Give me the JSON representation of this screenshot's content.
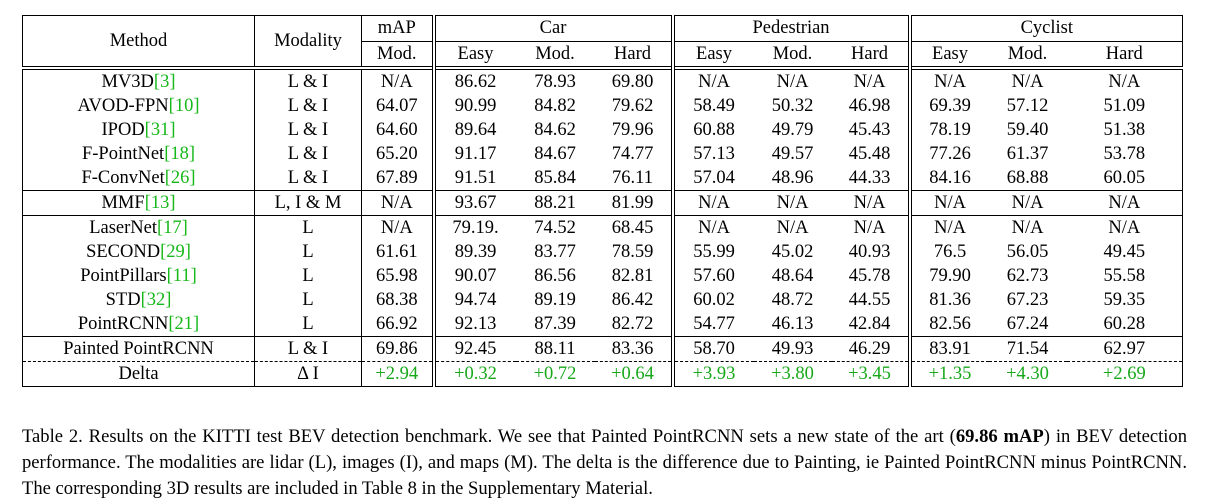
{
  "header": {
    "method": "Method",
    "modality": "Modality",
    "map": "mAP",
    "map_sub": "Mod.",
    "groups": [
      "Car",
      "Pedestrian",
      "Cyclist"
    ],
    "subcols": [
      "Easy",
      "Mod.",
      "Hard"
    ]
  },
  "sections": [
    {
      "rows": [
        {
          "method": "MV3D",
          "cite": "[3]",
          "modality": "L & I",
          "values": [
            "N/A",
            "86.62",
            "78.93",
            "69.80",
            "N/A",
            "N/A",
            "N/A",
            "N/A",
            "N/A",
            "N/A"
          ],
          "bold": []
        },
        {
          "method": "AVOD-FPN",
          "cite": "[10]",
          "modality": "L & I",
          "values": [
            "64.07",
            "90.99",
            "84.82",
            "79.62",
            "58.49",
            "50.32",
            "46.98",
            "69.39",
            "57.12",
            "51.09"
          ],
          "bold": [
            5,
            6
          ]
        },
        {
          "method": "IPOD",
          "cite": "[31]",
          "modality": "L & I",
          "values": [
            "64.60",
            "89.64",
            "84.62",
            "79.96",
            "60.88",
            "49.79",
            "45.43",
            "78.19",
            "59.40",
            "51.38"
          ],
          "bold": [
            4
          ]
        },
        {
          "method": "F-PointNet",
          "cite": "[18]",
          "modality": "L & I",
          "values": [
            "65.20",
            "91.17",
            "84.67",
            "74.77",
            "57.13",
            "49.57",
            "45.48",
            "77.26",
            "61.37",
            "53.78"
          ],
          "bold": []
        },
        {
          "method": "F-ConvNet",
          "cite": "[26]",
          "modality": "L & I",
          "values": [
            "67.89",
            "91.51",
            "85.84",
            "76.11",
            "57.04",
            "48.96",
            "44.33",
            "84.16",
            "68.88",
            "60.05"
          ],
          "bold": [
            7
          ]
        }
      ]
    },
    {
      "rows": [
        {
          "method": "MMF",
          "cite": "[13]",
          "modality": "L, I & M",
          "values": [
            "N/A",
            "93.67",
            "88.21",
            "81.99",
            "N/A",
            "N/A",
            "N/A",
            "N/A",
            "N/A",
            "N/A"
          ],
          "bold": []
        }
      ]
    },
    {
      "rows": [
        {
          "method": "LaserNet",
          "cite": "[17]",
          "modality": "L",
          "values": [
            "N/A",
            "79.19.",
            "74.52",
            "68.45",
            "N/A",
            "N/A",
            "N/A",
            "N/A",
            "N/A",
            "N/A"
          ],
          "bold": []
        },
        {
          "method": "SECOND",
          "cite": "[29]",
          "modality": "L",
          "values": [
            "61.61",
            "89.39",
            "83.77",
            "78.59",
            "55.99",
            "45.02",
            "40.93",
            "76.5",
            "56.05",
            "49.45"
          ],
          "bold": []
        },
        {
          "method": "PointPillars",
          "cite": "[11]",
          "modality": "L",
          "values": [
            "65.98",
            "90.07",
            "86.56",
            "82.81",
            "57.60",
            "48.64",
            "45.78",
            "79.90",
            "62.73",
            "55.58"
          ],
          "bold": []
        },
        {
          "method": "STD",
          "cite": "[32]",
          "modality": "L",
          "values": [
            "68.38",
            "94.74",
            "89.19",
            "86.42",
            "60.02",
            "48.72",
            "44.55",
            "81.36",
            "67.23",
            "59.35"
          ],
          "bold": [
            1,
            2,
            3
          ]
        },
        {
          "method": "PointRCNN",
          "cite": "[21]",
          "modality": "L",
          "values": [
            "66.92",
            "92.13",
            "87.39",
            "82.72",
            "54.77",
            "46.13",
            "42.84",
            "82.56",
            "67.24",
            "60.28"
          ],
          "bold": []
        }
      ]
    }
  ],
  "painted": {
    "method": "Painted PointRCNN",
    "modality": "L & I",
    "values": [
      "69.86",
      "92.45",
      "88.11",
      "83.36",
      "58.70",
      "49.93",
      "46.29",
      "83.91",
      "71.54",
      "62.97"
    ],
    "bold": [
      0,
      8,
      9
    ]
  },
  "delta": {
    "method": "Delta",
    "modality": "Δ I",
    "values": [
      "+2.94",
      "+0.32",
      "+0.72",
      "+0.64",
      "+3.93",
      "+3.80",
      "+3.45",
      "+1.35",
      "+4.30",
      "+2.69"
    ]
  },
  "caption": {
    "lead": "Table 2.  Results on the KITTI test BEV detection benchmark. We see that Painted PointRCNN sets a new state of the art (",
    "highlight": "69.86 mAP",
    "tail": ") in BEV detection performance. The modalities are lidar (L), images (I), and maps (M). The delta is the difference due to Painting, ie Painted PointRCNN minus PointRCNN. The corresponding 3D results are included in Table 8 in the Supplementary Material."
  },
  "colors": {
    "citation": "#17b81a",
    "delta": "#17a81a"
  }
}
